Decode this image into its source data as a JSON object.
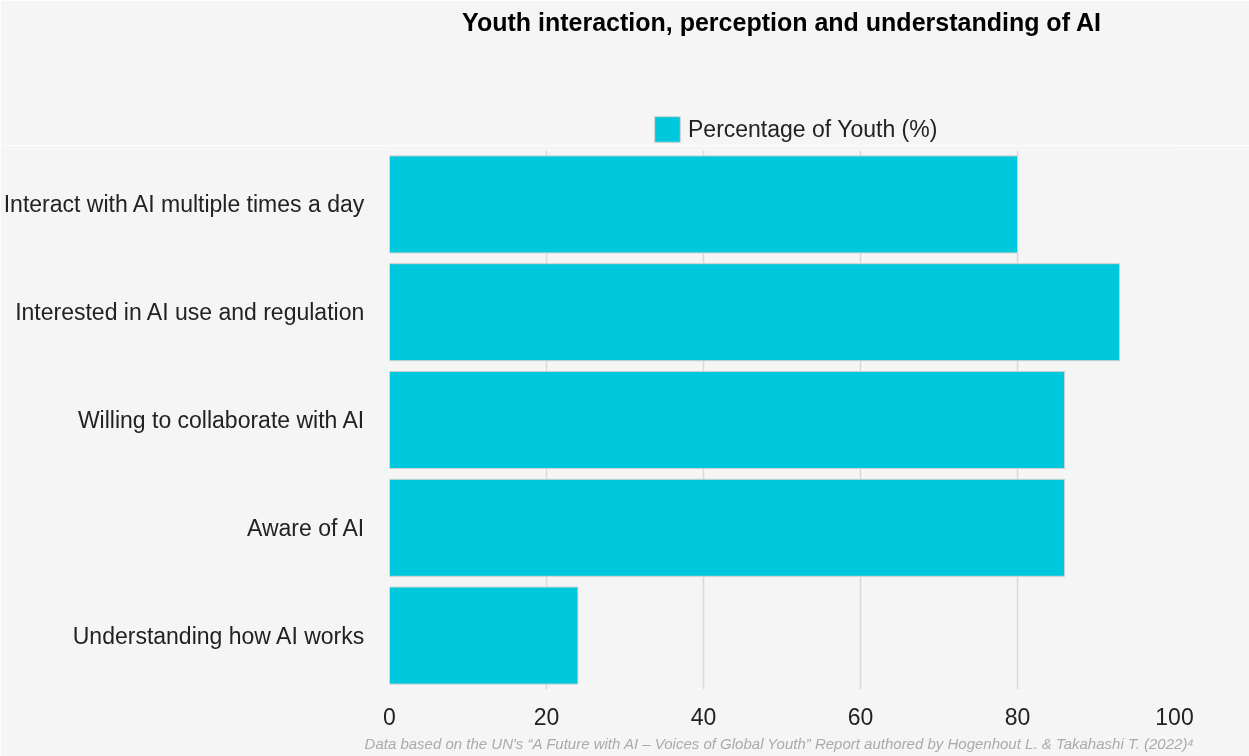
{
  "chart_data": {
    "type": "bar",
    "orientation": "horizontal",
    "title": "Youth interaction, perception and understanding of AI",
    "categories": [
      "Interact with AI multiple times a day",
      "Interested in AI use and regulation",
      "Willing to collaborate with AI",
      "Aware of AI",
      "Understanding how AI works"
    ],
    "series": [
      {
        "name": "Percentage of Youth (%)",
        "color": "#00c8dc",
        "values": [
          80,
          93,
          86,
          86,
          24
        ]
      }
    ],
    "xlim": [
      0,
      100
    ],
    "xticks": [
      0,
      20,
      40,
      60,
      80,
      100
    ],
    "grid": "x",
    "legend": "top",
    "annotations": [
      "Data based on the UN's  “A Future with AI – Voices of Global Youth” Report authored by Hogenhout L. & Takahashi T. (2022)⁴"
    ]
  }
}
